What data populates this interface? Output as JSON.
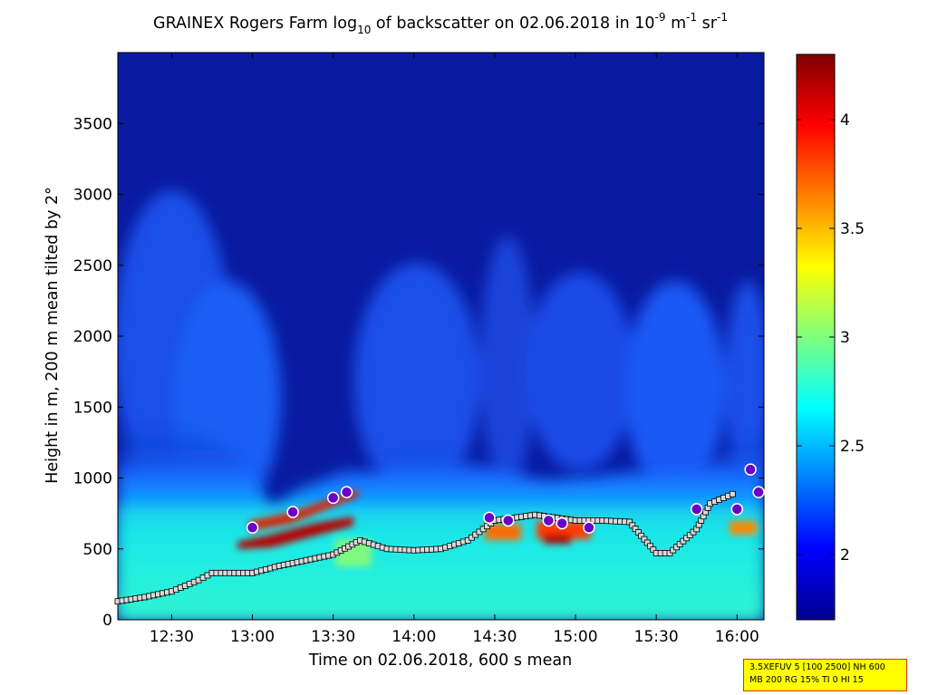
{
  "chart_data": {
    "type": "heatmap",
    "title_main": "GRAINEX Rogers Farm log",
    "title_sub_10": "10",
    "title_mid": " of backscatter on 02.06.2018 in 10",
    "title_sup_m9": "-9",
    "title_m": " m",
    "title_sup_m1a": "-1",
    "title_sr": " sr",
    "title_sup_m1b": "-1",
    "xlabel": "Time on 02.06.2018, 600 s mean",
    "ylabel": "Height in m, 200 m mean tilted by 2°",
    "x_range": [
      "12:10",
      "16:10"
    ],
    "x_ticks": [
      "12:30",
      "13:00",
      "13:30",
      "14:00",
      "14:30",
      "15:00",
      "15:30",
      "16:00"
    ],
    "y_range": [
      0,
      4000
    ],
    "y_ticks": [
      0,
      500,
      1000,
      1500,
      2000,
      2500,
      3000,
      3500
    ],
    "colorbar": {
      "range": [
        1.7,
        4.3
      ],
      "ticks": [
        "2",
        "2.5",
        "3",
        "3.5",
        "4"
      ],
      "colormap": "jet"
    },
    "boundary_layer_height_series": [
      {
        "x": "12:10",
        "y": 130
      },
      {
        "x": "12:20",
        "y": 160
      },
      {
        "x": "12:30",
        "y": 200
      },
      {
        "x": "12:40",
        "y": 280
      },
      {
        "x": "12:45",
        "y": 330
      },
      {
        "x": "13:00",
        "y": 330
      },
      {
        "x": "13:10",
        "y": 380
      },
      {
        "x": "13:20",
        "y": 420
      },
      {
        "x": "13:30",
        "y": 460
      },
      {
        "x": "13:40",
        "y": 560
      },
      {
        "x": "13:50",
        "y": 500
      },
      {
        "x": "14:00",
        "y": 490
      },
      {
        "x": "14:10",
        "y": 500
      },
      {
        "x": "14:20",
        "y": 560
      },
      {
        "x": "14:30",
        "y": 700
      },
      {
        "x": "14:45",
        "y": 740
      },
      {
        "x": "15:00",
        "y": 700
      },
      {
        "x": "15:10",
        "y": 700
      },
      {
        "x": "15:20",
        "y": 690
      },
      {
        "x": "15:30",
        "y": 470
      },
      {
        "x": "15:35",
        "y": 470
      },
      {
        "x": "15:45",
        "y": 640
      },
      {
        "x": "15:50",
        "y": 820
      },
      {
        "x": "16:00",
        "y": 900
      }
    ],
    "cloud_base_points": [
      {
        "x": "13:00",
        "y": 650
      },
      {
        "x": "13:15",
        "y": 760
      },
      {
        "x": "13:30",
        "y": 860
      },
      {
        "x": "13:35",
        "y": 900
      },
      {
        "x": "14:28",
        "y": 720
      },
      {
        "x": "14:35",
        "y": 700
      },
      {
        "x": "14:50",
        "y": 700
      },
      {
        "x": "14:55",
        "y": 680
      },
      {
        "x": "15:05",
        "y": 650
      },
      {
        "x": "15:45",
        "y": 780
      },
      {
        "x": "16:00",
        "y": 780
      },
      {
        "x": "16:05",
        "y": 1060
      },
      {
        "x": "16:08",
        "y": 900
      }
    ]
  },
  "info_box": {
    "line1": "3.5XEFUV 5 [100 2500] NH 600",
    "line2": "MB 200 RG 15% TI 0 HI 15"
  }
}
